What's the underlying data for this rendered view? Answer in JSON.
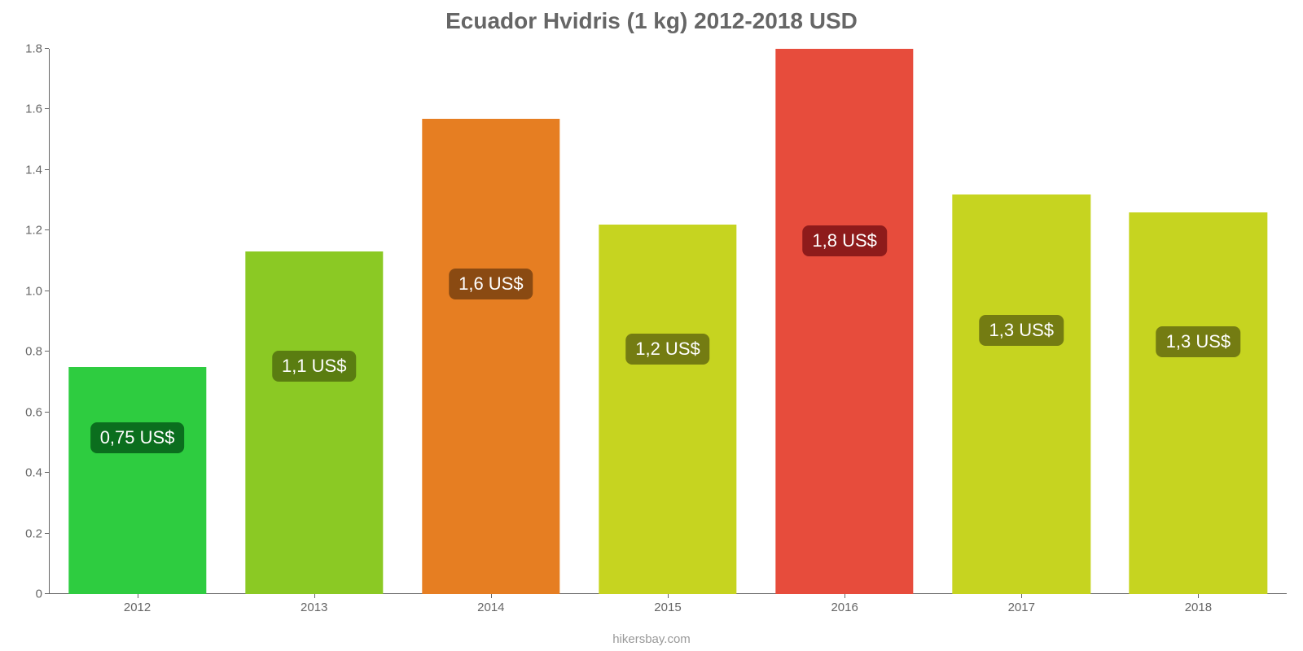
{
  "chart": {
    "type": "bar",
    "title": "Ecuador Hvidris (1 kg) 2012-2018 USD",
    "title_color": "#666666",
    "title_fontsize": 28,
    "background_color": "#ffffff",
    "axis_color": "#666666",
    "tick_label_color": "#666666",
    "tick_label_fontsize": 15,
    "ylim": [
      0,
      1.8
    ],
    "yticks": [
      0,
      0.2,
      0.4,
      0.6,
      0.8,
      1.0,
      1.2,
      1.4,
      1.6,
      1.8
    ],
    "ytick_labels": [
      "0",
      "0.2",
      "0.4",
      "0.6",
      "0.8",
      "1.0",
      "1.2",
      "1.4",
      "1.6",
      "1.8"
    ],
    "categories": [
      "2012",
      "2013",
      "2014",
      "2015",
      "2016",
      "2017",
      "2018"
    ],
    "values": [
      0.75,
      1.13,
      1.57,
      1.22,
      1.8,
      1.32,
      1.26
    ],
    "bar_colors": [
      "#2ecc40",
      "#8bc924",
      "#e67e22",
      "#c6d420",
      "#e74c3c",
      "#c6d420",
      "#c6d420"
    ],
    "value_labels": [
      "0,75 US$",
      "1,1 US$",
      "1,6 US$",
      "1,2 US$",
      "1,8 US$",
      "1,3 US$",
      "1,3 US$"
    ],
    "value_label_bg": [
      "#0b6e1e",
      "#5a7d11",
      "#8a4a12",
      "#747c12",
      "#8e1b1b",
      "#747c12",
      "#747c12"
    ],
    "value_label_fontsize": 22,
    "value_label_color": "#ffffff",
    "value_label_y_ratio": 0.62,
    "bar_width_ratio": 0.78,
    "attribution": "hikersbay.com",
    "attribution_color": "#999999"
  }
}
